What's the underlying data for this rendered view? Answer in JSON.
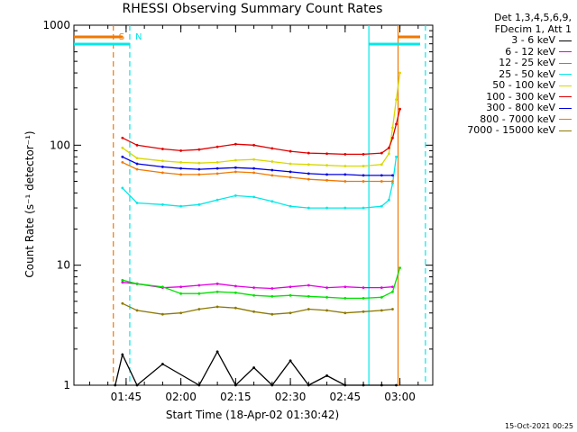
{
  "chart_data": {
    "type": "line",
    "title": "RHESSI Observing Summary Count Rates",
    "xlabel": "Start Time (18-Apr-02 01:30:42)",
    "ylabel": "Count Rate (s⁻¹ detector⁻¹)",
    "yscale": "log",
    "ylim": [
      1,
      1000
    ],
    "xlim": [
      "01:30:42",
      "03:09:00"
    ],
    "xticks": [
      "01:45",
      "02:00",
      "02:15",
      "02:30",
      "02:45",
      "03:00"
    ],
    "yticks": [
      "1",
      "10",
      "100",
      "1000"
    ],
    "legend_position": "right",
    "legend_header": [
      "Det 1,3,4,5,6,9,",
      "FDecim 1, Att 1"
    ],
    "series": [
      {
        "name": "3 - 6 keV",
        "color": "#000000",
        "x": [
          "01:42",
          "01:44",
          "01:48",
          "01:55",
          "02:05",
          "02:10",
          "02:15",
          "02:20",
          "02:25",
          "02:30",
          "02:35",
          "02:40",
          "02:45",
          "02:50",
          "02:55",
          "02:59"
        ],
        "y": [
          1.0,
          1.8,
          1.0,
          1.5,
          1.0,
          1.9,
          1.0,
          1.4,
          1.0,
          1.6,
          1.0,
          1.2,
          1.0,
          1.0,
          1.0,
          1.0
        ]
      },
      {
        "name": "6 - 12 keV",
        "color": "#e000e0",
        "x": [
          "01:44",
          "01:48",
          "01:55",
          "02:00",
          "02:05",
          "02:10",
          "02:15",
          "02:20",
          "02:25",
          "02:30",
          "02:35",
          "02:40",
          "02:45",
          "02:50",
          "02:55",
          "02:58"
        ],
        "y": [
          7.2,
          7.0,
          6.5,
          6.6,
          6.8,
          7.0,
          6.7,
          6.5,
          6.4,
          6.6,
          6.8,
          6.5,
          6.6,
          6.5,
          6.5,
          6.6
        ]
      },
      {
        "name": "12 - 25 keV",
        "color": "#00e000",
        "x": [
          "01:44",
          "01:48",
          "01:55",
          "02:00",
          "02:05",
          "02:10",
          "02:15",
          "02:20",
          "02:25",
          "02:30",
          "02:35",
          "02:40",
          "02:45",
          "02:50",
          "02:55",
          "02:58",
          "03:00"
        ],
        "y": [
          7.5,
          7.0,
          6.6,
          5.8,
          5.8,
          6.0,
          5.9,
          5.6,
          5.5,
          5.6,
          5.5,
          5.4,
          5.3,
          5.3,
          5.4,
          6.0,
          9.5
        ]
      },
      {
        "name": "25 - 50 keV",
        "color": "#00e8e8",
        "x": [
          "01:44",
          "01:48",
          "01:55",
          "02:00",
          "02:05",
          "02:10",
          "02:15",
          "02:20",
          "02:25",
          "02:30",
          "02:35",
          "02:40",
          "02:45",
          "02:50",
          "02:55",
          "02:57",
          "02:58",
          "02:59"
        ],
        "y": [
          44,
          33,
          32,
          31,
          32,
          35,
          38,
          37,
          34,
          31,
          30,
          30,
          30,
          30,
          31,
          35,
          48,
          80
        ]
      },
      {
        "name": "50 - 100 keV",
        "color": "#d8d800",
        "x": [
          "01:44",
          "01:48",
          "01:55",
          "02:00",
          "02:05",
          "02:10",
          "02:15",
          "02:20",
          "02:25",
          "02:30",
          "02:35",
          "02:40",
          "02:45",
          "02:50",
          "02:55",
          "02:57",
          "02:58",
          "02:59",
          "03:00"
        ],
        "y": [
          95,
          78,
          74,
          72,
          71,
          72,
          75,
          76,
          73,
          70,
          69,
          68,
          67,
          67,
          69,
          85,
          140,
          240,
          400
        ]
      },
      {
        "name": "100 - 300 keV",
        "color": "#e00000",
        "x": [
          "01:44",
          "01:48",
          "01:55",
          "02:00",
          "02:05",
          "02:10",
          "02:15",
          "02:20",
          "02:25",
          "02:30",
          "02:35",
          "02:40",
          "02:45",
          "02:50",
          "02:55",
          "02:57",
          "02:58",
          "02:59",
          "03:00"
        ],
        "y": [
          115,
          100,
          93,
          90,
          92,
          97,
          102,
          100,
          94,
          89,
          86,
          85,
          84,
          84,
          86,
          95,
          115,
          150,
          200
        ]
      },
      {
        "name": "300 - 800 keV",
        "color": "#0000e0",
        "x": [
          "01:44",
          "01:48",
          "01:55",
          "02:00",
          "02:05",
          "02:10",
          "02:15",
          "02:20",
          "02:25",
          "02:30",
          "02:35",
          "02:40",
          "02:45",
          "02:50",
          "02:55",
          "02:58"
        ],
        "y": [
          80,
          70,
          66,
          64,
          63,
          64,
          65,
          64,
          62,
          60,
          58,
          57,
          57,
          56,
          56,
          56
        ]
      },
      {
        "name": "800 - 7000 keV",
        "color": "#f07800",
        "x": [
          "01:44",
          "01:48",
          "01:55",
          "02:00",
          "02:05",
          "02:10",
          "02:15",
          "02:20",
          "02:25",
          "02:30",
          "02:35",
          "02:40",
          "02:45",
          "02:50",
          "02:55",
          "02:58"
        ],
        "y": [
          72,
          63,
          59,
          57,
          57,
          58,
          60,
          59,
          56,
          54,
          52,
          51,
          50,
          50,
          50,
          50
        ]
      },
      {
        "name": "7000 - 15000 keV",
        "color": "#8c7800",
        "x": [
          "01:44",
          "01:48",
          "01:55",
          "02:00",
          "02:05",
          "02:10",
          "02:15",
          "02:20",
          "02:25",
          "02:30",
          "02:35",
          "02:40",
          "02:45",
          "02:50",
          "02:55",
          "02:58"
        ],
        "y": [
          4.8,
          4.2,
          3.9,
          4.0,
          4.3,
          4.5,
          4.4,
          4.1,
          3.9,
          4.0,
          4.3,
          4.2,
          4.0,
          4.1,
          4.2,
          4.3
        ]
      }
    ],
    "markers": [
      {
        "label": "S",
        "color": "#f07800",
        "style": "dashed",
        "time": "01:41:30"
      },
      {
        "label": "N",
        "color": "#00e8e8",
        "style": "dashed",
        "time": "01:46:00"
      },
      {
        "label": "",
        "color": "#00e8e8",
        "style": "solid",
        "time": "02:51:30"
      },
      {
        "label": "",
        "color": "#f07800",
        "style": "solid",
        "time": "02:59:30"
      },
      {
        "label": "",
        "color": "#00e8e8",
        "style": "dashed",
        "time": "03:07:00"
      }
    ]
  },
  "footer_date": "15-Oct-2021 00:25"
}
